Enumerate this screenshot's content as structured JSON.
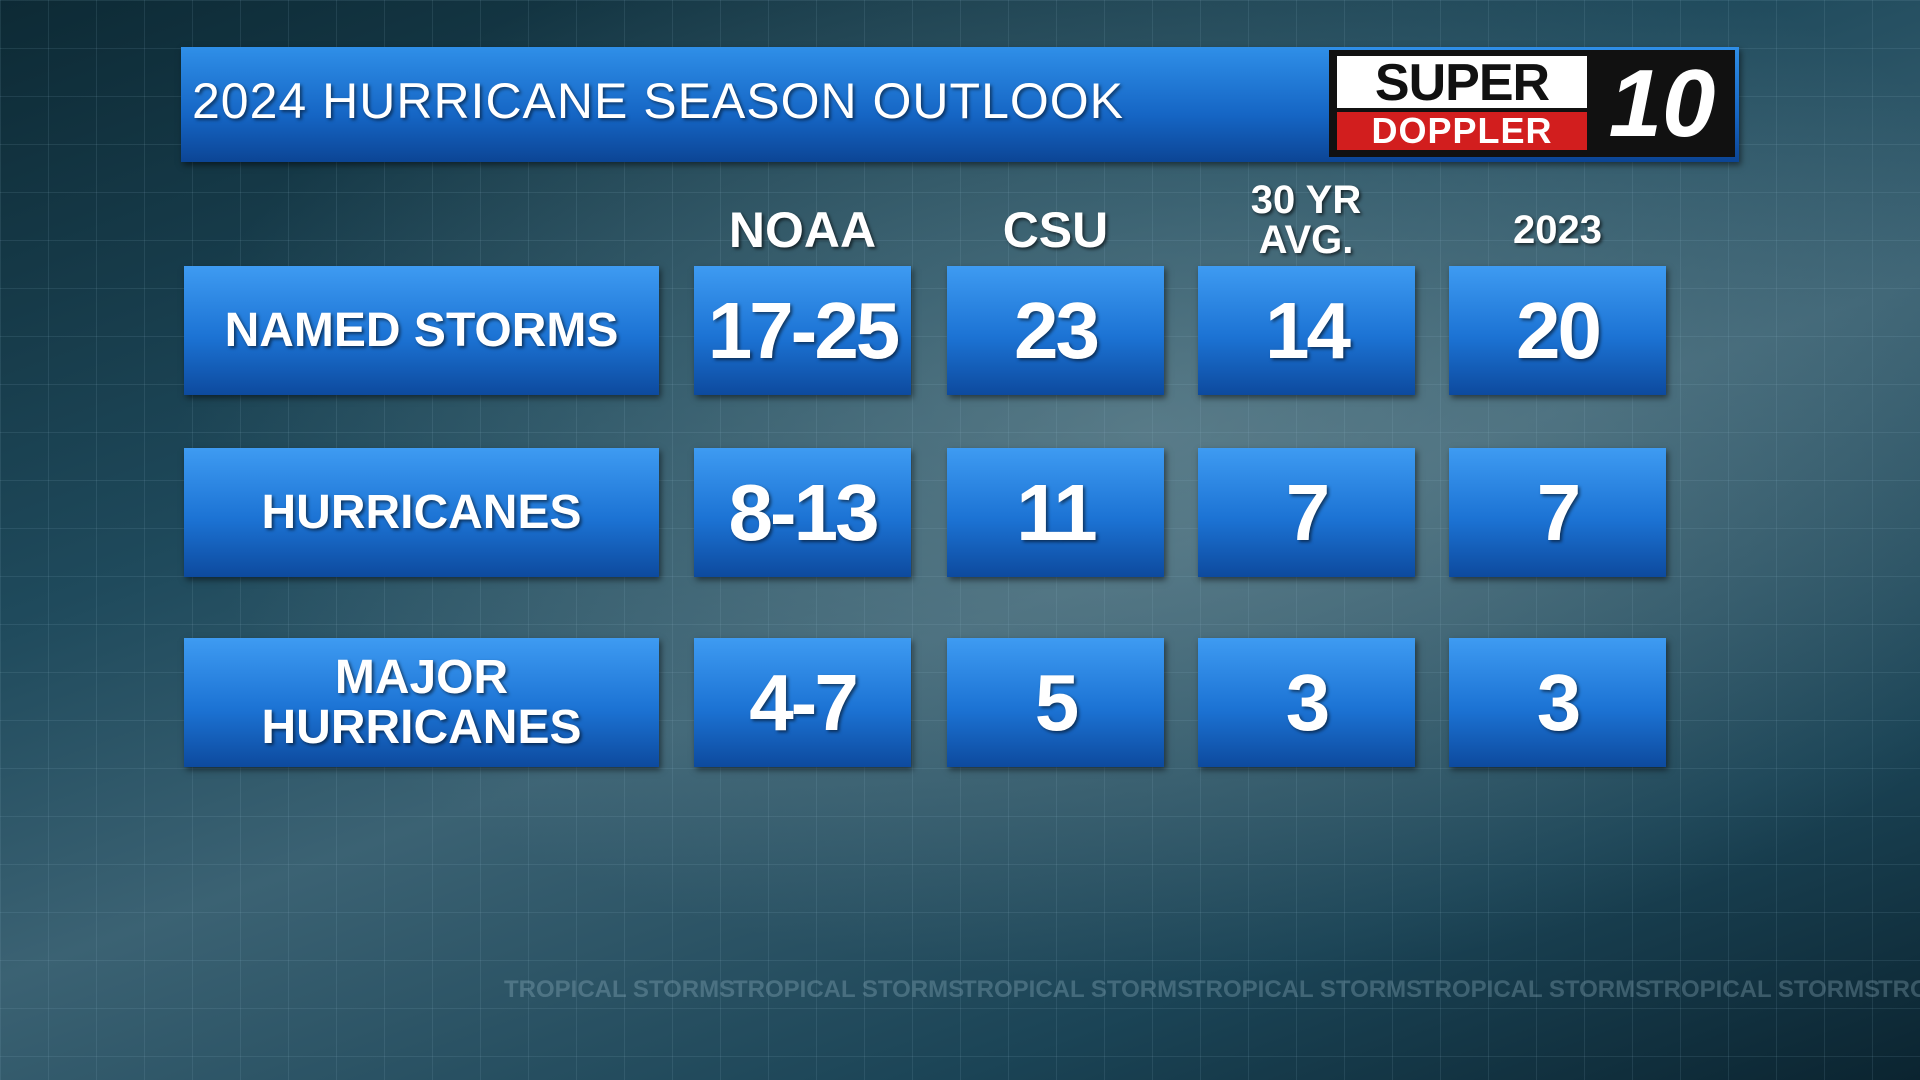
{
  "header": {
    "title": "2024 HURRICANE SEASON OUTLOOK",
    "logo": {
      "line1": "SUPER",
      "line2": "DOPPLER",
      "mark": "10"
    }
  },
  "table": {
    "columns": [
      "NOAA",
      "CSU",
      "30 YR AVG.",
      "2023"
    ],
    "rows": [
      {
        "label": "NAMED STORMS",
        "values": [
          "17-25",
          "23",
          "14",
          "20"
        ]
      },
      {
        "label": "HURRICANES",
        "values": [
          "8-13",
          "11",
          "7",
          "7"
        ]
      },
      {
        "label": "MAJOR HURRICANES",
        "values": [
          "4-7",
          "5",
          "3",
          "3"
        ]
      }
    ]
  },
  "watermark": "TROPICAL STORMS"
}
